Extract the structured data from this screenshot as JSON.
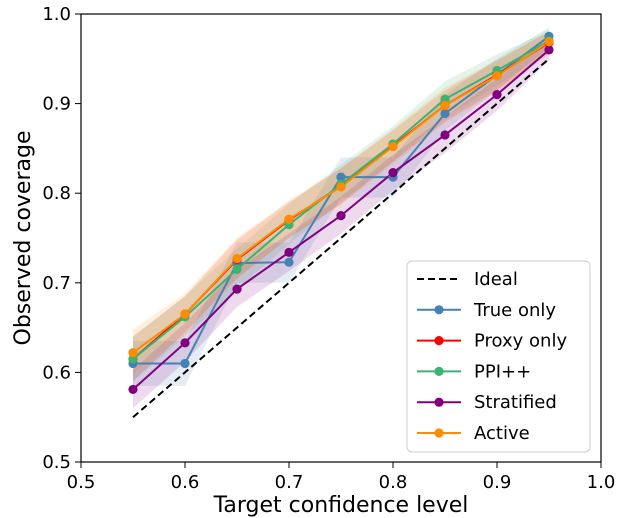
{
  "chart_data": {
    "type": "line",
    "xlabel": "Target confidence level",
    "ylabel": "Observed coverage",
    "xlim": [
      0.5,
      1.0
    ],
    "ylim": [
      0.5,
      1.0
    ],
    "xticks": [
      0.5,
      0.6,
      0.7,
      0.8,
      0.9,
      1.0
    ],
    "yticks": [
      0.5,
      0.6,
      0.7,
      0.8,
      0.9,
      1.0
    ],
    "xtick_labels": [
      "0.5",
      "0.6",
      "0.7",
      "0.8",
      "0.9",
      "1.0"
    ],
    "ytick_labels": [
      "0.5",
      "0.6",
      "0.7",
      "0.8",
      "0.9",
      "1.0"
    ],
    "grid": false,
    "legend_position": "lower-right",
    "x": [
      0.55,
      0.6,
      0.65,
      0.7,
      0.75,
      0.8,
      0.85,
      0.9,
      0.95
    ],
    "ideal": {
      "name": "Ideal",
      "color": "#000000",
      "values": [
        0.55,
        0.6,
        0.65,
        0.7,
        0.75,
        0.8,
        0.85,
        0.9,
        0.95
      ]
    },
    "series": [
      {
        "name": "True only",
        "color": "#4682b4",
        "values": [
          0.61,
          0.61,
          0.722,
          0.723,
          0.818,
          0.818,
          0.889,
          0.932,
          0.975
        ],
        "lower": [
          0.585,
          0.585,
          0.7,
          0.7,
          0.795,
          0.795,
          0.87,
          0.915,
          0.963
        ],
        "upper": [
          0.635,
          0.635,
          0.745,
          0.745,
          0.84,
          0.84,
          0.91,
          0.95,
          0.985
        ]
      },
      {
        "name": "Proxy only",
        "color": "#ff0000",
        "values": [
          0.615,
          0.665,
          0.726,
          0.77,
          0.808,
          0.853,
          0.898,
          0.932,
          0.968
        ],
        "lower": [
          0.59,
          0.645,
          0.705,
          0.75,
          0.788,
          0.835,
          0.88,
          0.915,
          0.955
        ],
        "upper": [
          0.64,
          0.685,
          0.748,
          0.79,
          0.828,
          0.87,
          0.915,
          0.948,
          0.98
        ]
      },
      {
        "name": "PPI++",
        "color": "#3cb371",
        "values": [
          0.615,
          0.662,
          0.715,
          0.765,
          0.81,
          0.855,
          0.905,
          0.937,
          0.97
        ],
        "lower": [
          0.59,
          0.64,
          0.693,
          0.743,
          0.79,
          0.835,
          0.885,
          0.92,
          0.958
        ],
        "upper": [
          0.64,
          0.685,
          0.738,
          0.788,
          0.832,
          0.875,
          0.925,
          0.955,
          0.982
        ]
      },
      {
        "name": "Stratified",
        "color": "#800080",
        "values": [
          0.581,
          0.633,
          0.693,
          0.734,
          0.775,
          0.823,
          0.865,
          0.91,
          0.96
        ],
        "lower": [
          0.56,
          0.612,
          0.673,
          0.713,
          0.755,
          0.803,
          0.845,
          0.892,
          0.948
        ],
        "upper": [
          0.603,
          0.655,
          0.715,
          0.755,
          0.796,
          0.843,
          0.885,
          0.928,
          0.972
        ]
      },
      {
        "name": "Active",
        "color": "#ff8c00",
        "values": [
          0.622,
          0.665,
          0.727,
          0.771,
          0.807,
          0.852,
          0.898,
          0.931,
          0.969
        ],
        "lower": [
          0.598,
          0.642,
          0.705,
          0.75,
          0.787,
          0.832,
          0.878,
          0.913,
          0.957
        ],
        "upper": [
          0.648,
          0.688,
          0.75,
          0.792,
          0.828,
          0.872,
          0.918,
          0.949,
          0.981
        ]
      }
    ]
  }
}
